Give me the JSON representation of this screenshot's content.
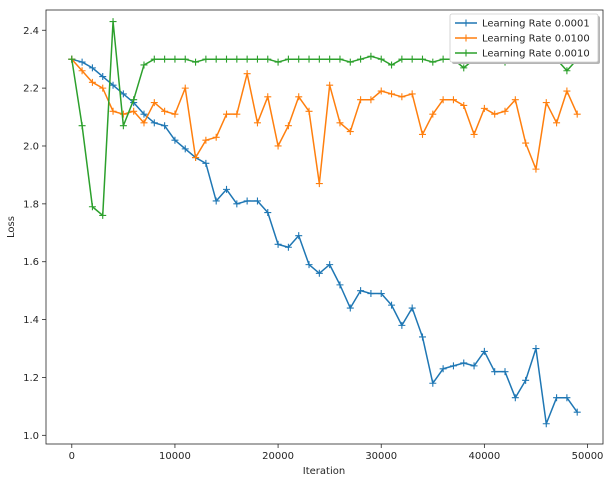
{
  "chart_data": {
    "type": "line",
    "title": "",
    "xlabel": "Iteration",
    "ylabel": "Loss",
    "xlim": [
      -2500,
      51500
    ],
    "ylim": [
      0.97,
      2.47
    ],
    "xticks": [
      0,
      10000,
      20000,
      30000,
      40000,
      50000
    ],
    "yticks": [
      1.0,
      1.2,
      1.4,
      1.6,
      1.8,
      2.0,
      2.2,
      2.4
    ],
    "xtick_labels": [
      "0",
      "10000",
      "20000",
      "30000",
      "40000",
      "50000"
    ],
    "ytick_labels": [
      "1.0",
      "1.2",
      "1.4",
      "1.6",
      "1.8",
      "2.0",
      "2.2",
      "2.4"
    ],
    "grid": false,
    "legend_position": "top-right",
    "marker": "+",
    "x": [
      0,
      1000,
      2000,
      3000,
      4000,
      5000,
      6000,
      7000,
      8000,
      9000,
      10000,
      11000,
      12000,
      13000,
      14000,
      15000,
      16000,
      17000,
      18000,
      19000,
      20000,
      21000,
      22000,
      23000,
      24000,
      25000,
      26000,
      27000,
      28000,
      29000,
      30000,
      31000,
      32000,
      33000,
      34000,
      35000,
      36000,
      37000,
      38000,
      39000,
      40000,
      41000,
      42000,
      43000,
      44000,
      45000,
      46000,
      47000,
      48000,
      49000
    ],
    "series": [
      {
        "name": "Learning Rate  0.0001",
        "color": "#1f77b4",
        "values": [
          2.3,
          2.29,
          2.27,
          2.24,
          2.21,
          2.18,
          2.15,
          2.11,
          2.08,
          2.07,
          2.02,
          1.99,
          1.96,
          1.94,
          1.81,
          1.85,
          1.8,
          1.81,
          1.81,
          1.77,
          1.66,
          1.65,
          1.69,
          1.59,
          1.56,
          1.59,
          1.52,
          1.44,
          1.5,
          1.49,
          1.49,
          1.45,
          1.38,
          1.44,
          1.34,
          1.18,
          1.23,
          1.24,
          1.25,
          1.24,
          1.29,
          1.22,
          1.22,
          1.13,
          1.19,
          1.3,
          1.04,
          1.13,
          1.13,
          1.08
        ]
      },
      {
        "name": "Learning Rate  0.0100",
        "color": "#ff7f0e",
        "values": [
          2.3,
          2.26,
          2.22,
          2.2,
          2.12,
          2.11,
          2.12,
          2.08,
          2.15,
          2.12,
          2.11,
          2.2,
          1.96,
          2.02,
          2.03,
          2.11,
          2.11,
          2.25,
          2.08,
          2.17,
          2.0,
          2.07,
          2.17,
          2.12,
          1.87,
          2.21,
          2.08,
          2.05,
          2.16,
          2.16,
          2.19,
          2.18,
          2.17,
          2.18,
          2.04,
          2.11,
          2.16,
          2.16,
          2.14,
          2.04,
          2.13,
          2.11,
          2.12,
          2.16,
          2.01,
          1.92,
          2.15,
          2.08,
          2.19,
          2.11
        ]
      },
      {
        "name": "Learning Rate  0.0010",
        "color": "#2ca02c",
        "values": [
          2.3,
          2.07,
          1.79,
          1.76,
          2.43,
          2.07,
          2.16,
          2.28,
          2.3,
          2.3,
          2.3,
          2.3,
          2.29,
          2.3,
          2.3,
          2.3,
          2.3,
          2.3,
          2.3,
          2.3,
          2.29,
          2.3,
          2.3,
          2.3,
          2.3,
          2.3,
          2.3,
          2.29,
          2.3,
          2.31,
          2.3,
          2.28,
          2.3,
          2.3,
          2.3,
          2.29,
          2.3,
          2.3,
          2.27,
          2.3,
          2.3,
          2.3,
          2.29,
          2.3,
          2.3,
          2.3,
          2.3,
          2.3,
          2.26,
          2.3
        ]
      }
    ]
  }
}
